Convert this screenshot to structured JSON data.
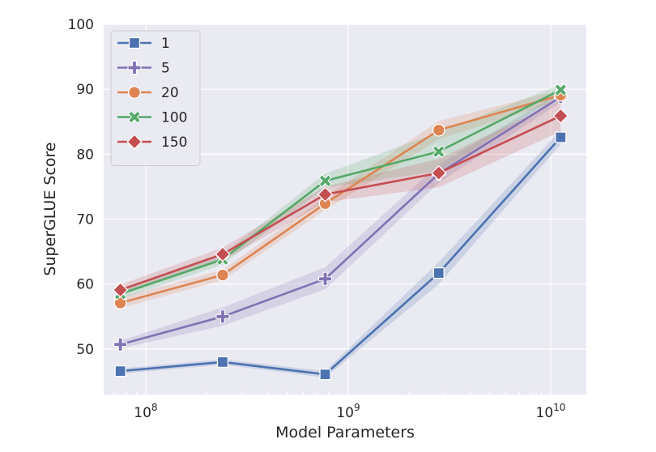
{
  "chart_data": {
    "type": "line",
    "title": "",
    "xlabel": "Model Parameters",
    "ylabel": "SuperGLUE Score",
    "x_scale": "log",
    "x": [
      75000000.0,
      240000000.0,
      770000000.0,
      2800000000.0,
      11200000000.0
    ],
    "xlim": [
      62000000.0,
      15000000000.0
    ],
    "ylim": [
      43,
      100
    ],
    "yticks": [
      50,
      60,
      70,
      80,
      90,
      100
    ],
    "xticks": [
      {
        "value": 100000000.0,
        "base": "10",
        "exp": "8"
      },
      {
        "value": 1000000000.0,
        "base": "10",
        "exp": "9"
      },
      {
        "value": 10000000000.0,
        "base": "10",
        "exp": "10"
      }
    ],
    "grid": true,
    "legend_position": "top-left",
    "series": [
      {
        "name": "1",
        "color": "#4c72b0",
        "marker": "square",
        "values": [
          46.6,
          48.0,
          46.1,
          61.7,
          82.6
        ],
        "lower": [
          46.2,
          47.6,
          45.6,
          60.0,
          81.5
        ],
        "upper": [
          47.0,
          48.4,
          46.6,
          63.4,
          83.7
        ]
      },
      {
        "name": "5",
        "color": "#8172b3",
        "marker": "plus",
        "values": [
          50.7,
          55.0,
          60.8,
          77.0,
          88.8
        ],
        "lower": [
          50.1,
          53.6,
          59.2,
          75.6,
          88.0
        ],
        "upper": [
          51.3,
          56.4,
          62.6,
          78.4,
          89.6
        ]
      },
      {
        "name": "20",
        "color": "#dd8452",
        "marker": "circle",
        "values": [
          57.1,
          61.4,
          72.4,
          83.7,
          89.1
        ],
        "lower": [
          56.3,
          60.6,
          71.4,
          82.3,
          88.3
        ],
        "upper": [
          57.9,
          62.2,
          73.4,
          85.1,
          89.9
        ]
      },
      {
        "name": "100",
        "color": "#55a868",
        "marker": "x",
        "values": [
          58.5,
          63.8,
          75.9,
          80.4,
          89.9
        ],
        "lower": [
          57.7,
          63.0,
          74.8,
          77.4,
          89.1
        ],
        "upper": [
          59.3,
          64.6,
          77.0,
          83.4,
          90.7
        ]
      },
      {
        "name": "150",
        "color": "#c44e52",
        "marker": "diamond",
        "values": [
          59.1,
          64.6,
          73.8,
          77.1,
          85.9
        ],
        "lower": [
          58.3,
          63.6,
          72.6,
          74.9,
          83.5
        ],
        "upper": [
          59.9,
          65.6,
          75.0,
          79.3,
          88.3
        ]
      }
    ]
  }
}
